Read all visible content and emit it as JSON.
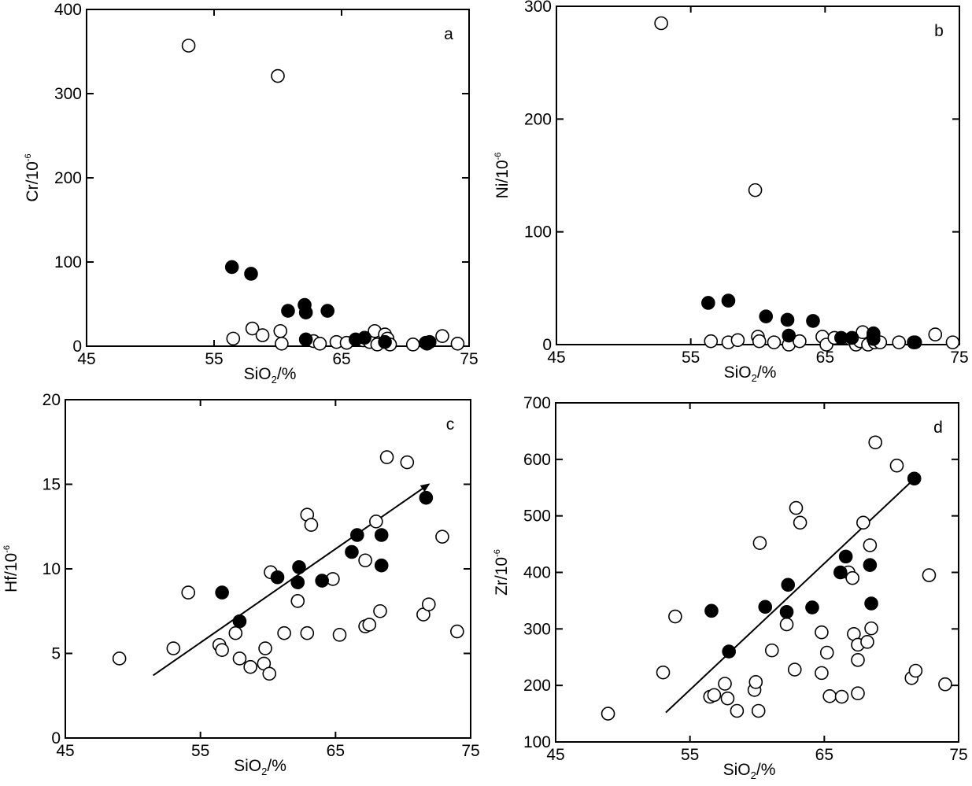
{
  "colors": {
    "axis": "#000000",
    "filled": "#000000",
    "open_fill": "#ffffff",
    "open_stroke": "#000000"
  },
  "chart_data": [
    {
      "type": "scatter",
      "panel_label": "a",
      "xlabel": {
        "main": "SiO",
        "sub": "2",
        "tail": "/%"
      },
      "ylabel": {
        "main": "Cr/10",
        "sup": "-6"
      },
      "xlim": [
        45,
        75
      ],
      "ylim": [
        0,
        400
      ],
      "xticks": [
        45,
        55,
        65,
        75
      ],
      "yticks": [
        0,
        100,
        200,
        300,
        400
      ],
      "series": [
        {
          "marker": "open",
          "points": [
            [
              53,
              357
            ],
            [
              60,
              321
            ],
            [
              56.5,
              9
            ],
            [
              58,
              21
            ],
            [
              58.8,
              13
            ],
            [
              60.2,
              18
            ],
            [
              60.3,
              3
            ],
            [
              62.8,
              6
            ],
            [
              63.3,
              3
            ],
            [
              64.6,
              5
            ],
            [
              65.4,
              4
            ],
            [
              66.7,
              7
            ],
            [
              67.2,
              5
            ],
            [
              67.6,
              18
            ],
            [
              67.8,
              2
            ],
            [
              68.4,
              14
            ],
            [
              68.6,
              9
            ],
            [
              68.8,
              2
            ],
            [
              70.6,
              2
            ],
            [
              71.7,
              3
            ],
            [
              72.9,
              12
            ],
            [
              74.1,
              3
            ]
          ]
        },
        {
          "marker": "filled",
          "points": [
            [
              56.4,
              94
            ],
            [
              57.9,
              86
            ],
            [
              60.8,
              42
            ],
            [
              62.1,
              49
            ],
            [
              62.2,
              40
            ],
            [
              63.9,
              42
            ],
            [
              62.2,
              8
            ],
            [
              66.1,
              8
            ],
            [
              66.8,
              10
            ],
            [
              68.4,
              5
            ],
            [
              71.6,
              4
            ],
            [
              71.9,
              5
            ]
          ]
        }
      ]
    },
    {
      "type": "scatter",
      "panel_label": "b",
      "xlabel": {
        "main": "SiO",
        "sub": "2",
        "tail": "/%"
      },
      "ylabel": {
        "main": "Ni/10",
        "sup": "-6"
      },
      "xlim": [
        45,
        75
      ],
      "ylim": [
        0,
        300
      ],
      "xticks": [
        45,
        55,
        65,
        75
      ],
      "yticks": [
        0,
        100,
        200,
        300
      ],
      "series": [
        {
          "marker": "open",
          "points": [
            [
              52.8,
              285
            ],
            [
              59.8,
              137
            ],
            [
              56.5,
              3
            ],
            [
              57.8,
              2
            ],
            [
              58.5,
              4
            ],
            [
              60,
              7
            ],
            [
              60.1,
              3
            ],
            [
              61.2,
              2
            ],
            [
              62.3,
              0
            ],
            [
              63.1,
              3
            ],
            [
              64.8,
              7
            ],
            [
              65.1,
              0
            ],
            [
              65.7,
              6
            ],
            [
              66.9,
              5
            ],
            [
              67.3,
              0
            ],
            [
              67.6,
              3
            ],
            [
              67.8,
              11
            ],
            [
              68.2,
              0
            ],
            [
              68.6,
              8
            ],
            [
              68.7,
              2
            ],
            [
              69.1,
              2
            ],
            [
              70.5,
              2
            ],
            [
              71.6,
              2
            ],
            [
              73.2,
              9
            ],
            [
              74.5,
              2
            ]
          ]
        },
        {
          "marker": "filled",
          "points": [
            [
              56.3,
              37
            ],
            [
              57.8,
              39
            ],
            [
              60.6,
              25
            ],
            [
              62.2,
              22
            ],
            [
              62.3,
              8
            ],
            [
              64.1,
              21
            ],
            [
              66.2,
              6
            ],
            [
              67,
              6
            ],
            [
              68.6,
              5
            ],
            [
              68.6,
              10
            ],
            [
              71.7,
              2
            ]
          ]
        }
      ]
    },
    {
      "type": "scatter",
      "panel_label": "c",
      "xlabel": {
        "main": "SiO",
        "sub": "2",
        "tail": "/%"
      },
      "ylabel": {
        "main": "Hf/10",
        "sup": "-6"
      },
      "xlim": [
        45,
        75
      ],
      "ylim": [
        0,
        20
      ],
      "xticks": [
        45,
        55,
        65,
        75
      ],
      "yticks": [
        0,
        5,
        10,
        15,
        20
      ],
      "series": [
        {
          "marker": "open",
          "points": [
            [
              49,
              4.7
            ],
            [
              53,
              5.3
            ],
            [
              54.1,
              8.6
            ],
            [
              56.4,
              5.5
            ],
            [
              56.6,
              5.2
            ],
            [
              57.6,
              6.2
            ],
            [
              57.9,
              4.7
            ],
            [
              58.7,
              4.2
            ],
            [
              59.7,
              4.4
            ],
            [
              59.8,
              5.3
            ],
            [
              60.1,
              3.8
            ],
            [
              60.2,
              9.8
            ],
            [
              61.2,
              6.2
            ],
            [
              62.2,
              8.1
            ],
            [
              62.9,
              13.2
            ],
            [
              63.2,
              12.6
            ],
            [
              62.9,
              6.2
            ],
            [
              64.8,
              9.4
            ],
            [
              65.3,
              6.1
            ],
            [
              67.2,
              10.5
            ],
            [
              67.2,
              6.6
            ],
            [
              67.5,
              6.7
            ],
            [
              68,
              12.8
            ],
            [
              68.3,
              7.5
            ],
            [
              68.8,
              16.6
            ],
            [
              70.3,
              16.3
            ],
            [
              71.5,
              7.3
            ],
            [
              71.9,
              7.9
            ],
            [
              72.9,
              11.9
            ],
            [
              74,
              6.3
            ]
          ]
        },
        {
          "marker": "filled",
          "points": [
            [
              56.6,
              8.6
            ],
            [
              57.9,
              6.9
            ],
            [
              60.7,
              9.5
            ],
            [
              62.2,
              9.2
            ],
            [
              62.3,
              10.1
            ],
            [
              64,
              9.3
            ],
            [
              66.2,
              11
            ],
            [
              66.6,
              12
            ],
            [
              68.4,
              12
            ],
            [
              68.4,
              10.2
            ],
            [
              71.7,
              14.2
            ]
          ]
        }
      ],
      "trend_arrow": {
        "from": [
          51.5,
          3.7
        ],
        "to": [
          71.9,
          15
        ]
      }
    },
    {
      "type": "scatter",
      "panel_label": "d",
      "xlabel": {
        "main": "SiO",
        "sub": "2",
        "tail": "/%"
      },
      "ylabel": {
        "main": "Zr/10",
        "sup": "-6"
      },
      "xlim": [
        45,
        75
      ],
      "ylim": [
        100,
        700
      ],
      "xticks": [
        45,
        55,
        65,
        75
      ],
      "yticks": [
        100,
        200,
        300,
        400,
        500,
        600,
        700
      ],
      "series": [
        {
          "marker": "open",
          "points": [
            [
              48.9,
              150
            ],
            [
              53,
              223
            ],
            [
              53.9,
              322
            ],
            [
              56.5,
              180
            ],
            [
              56.8,
              183
            ],
            [
              57.6,
              203
            ],
            [
              57.8,
              177
            ],
            [
              58.5,
              155
            ],
            [
              59.8,
              192
            ],
            [
              59.9,
              206
            ],
            [
              60.1,
              155
            ],
            [
              60.2,
              452
            ],
            [
              61.1,
              262
            ],
            [
              62.2,
              308
            ],
            [
              62.9,
              514
            ],
            [
              63.2,
              488
            ],
            [
              62.8,
              228
            ],
            [
              64.8,
              222
            ],
            [
              64.8,
              294
            ],
            [
              65.2,
              258
            ],
            [
              65.4,
              181
            ],
            [
              66.3,
              180
            ],
            [
              66.8,
              400
            ],
            [
              67.1,
              390
            ],
            [
              67.2,
              291
            ],
            [
              67.5,
              245
            ],
            [
              67.5,
              272
            ],
            [
              67.5,
              186
            ],
            [
              67.9,
              488
            ],
            [
              68.2,
              277
            ],
            [
              68.4,
              448
            ],
            [
              68.5,
              301
            ],
            [
              68.8,
              630
            ],
            [
              70.4,
              589
            ],
            [
              71.5,
              213
            ],
            [
              71.8,
              226
            ],
            [
              72.8,
              395
            ],
            [
              74,
              202
            ]
          ]
        },
        {
          "marker": "filled",
          "points": [
            [
              56.6,
              332
            ],
            [
              57.9,
              260
            ],
            [
              60.6,
              339
            ],
            [
              62.2,
              330
            ],
            [
              62.3,
              378
            ],
            [
              64.1,
              338
            ],
            [
              66.2,
              400
            ],
            [
              66.6,
              428
            ],
            [
              68.4,
              413
            ],
            [
              68.5,
              345
            ],
            [
              71.7,
              566
            ]
          ]
        }
      ],
      "trend_arrow": {
        "from": [
          53.2,
          152
        ],
        "to": [
          71.9,
          570
        ]
      }
    }
  ]
}
